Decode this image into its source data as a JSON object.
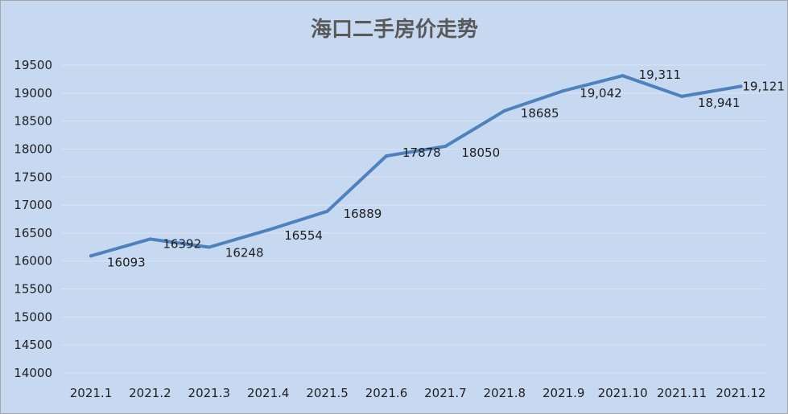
{
  "chart_data": {
    "type": "line",
    "title": "海口二手房价走势",
    "xlabel": "",
    "ylabel": "",
    "categories": [
      "2021.1",
      "2021.2",
      "2021.3",
      "2021.4",
      "2021.5",
      "2021.6",
      "2021.7",
      "2021.8",
      "2021.9",
      "2021.10",
      "2021.11",
      "2021.12"
    ],
    "series": [
      {
        "values": [
          16093,
          16392,
          16248,
          16554,
          16889,
          17878,
          18050,
          18685,
          19042,
          19311,
          18941,
          19121
        ],
        "labels": [
          "16093",
          "16392",
          "16248",
          "16554",
          "16889",
          "17878",
          "18050",
          "18685",
          "19,042",
          "19,311",
          "18,941",
          "19,121"
        ]
      }
    ],
    "ylim": [
      14000,
      19500
    ],
    "yticks": [
      14000,
      14500,
      15000,
      15500,
      16000,
      16500,
      17000,
      17500,
      18000,
      18500,
      19000,
      19500
    ],
    "grid": true,
    "legend": "none",
    "colors": {
      "line": "#4f81bd",
      "background": "#c6d9f1",
      "grid": "#d9e4f2"
    }
  }
}
